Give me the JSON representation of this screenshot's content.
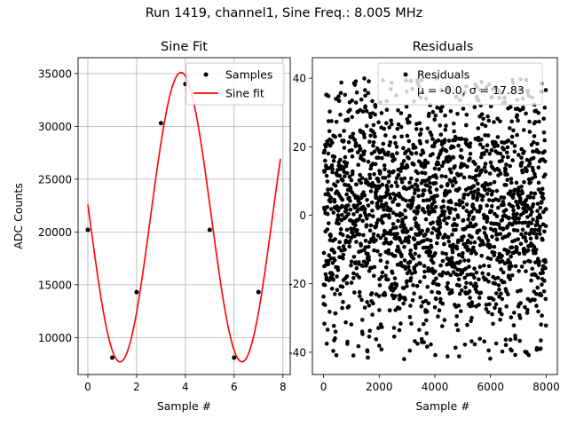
{
  "figure": {
    "suptitle": "Run 1419, channel1, Sine Freq.: 8.005 MHz"
  },
  "chart_data": [
    {
      "type": "line",
      "title": "Sine Fit",
      "xlabel": "Sample #",
      "ylabel": "ADC Counts",
      "xlim": [
        -0.4,
        8.3
      ],
      "ylim": [
        6500,
        36500
      ],
      "xticks": [
        0,
        2,
        4,
        6,
        8
      ],
      "yticks": [
        10000,
        15000,
        20000,
        25000,
        30000,
        35000
      ],
      "grid": true,
      "legend": "top-right",
      "fit_params": {
        "amplitude": 13700,
        "offset": 21400,
        "period_samples": 5.0,
        "phase_samples": 0.0
      },
      "fit_x_range": [
        0,
        7.9
      ],
      "series": [
        {
          "name": "Samples",
          "kind": "scatter",
          "color": "#000000",
          "x": [
            0,
            1,
            2,
            3,
            4,
            5,
            6,
            7
          ],
          "y": [
            20200,
            8100,
            14300,
            30300,
            34000,
            20200,
            8100,
            14300
          ]
        },
        {
          "name": "Sine fit",
          "kind": "line",
          "color": "#ff0000"
        }
      ]
    },
    {
      "type": "scatter",
      "title": "Residuals",
      "xlabel": "Sample #",
      "ylabel": "",
      "xlim": [
        -400,
        8400
      ],
      "ylim": [
        -46.5,
        46
      ],
      "xticks": [
        0,
        2000,
        4000,
        6000,
        8000
      ],
      "yticks": [
        -40,
        -20,
        0,
        20,
        40
      ],
      "grid": false,
      "legend": "top-right",
      "n_points": 8000,
      "mean": -0.0,
      "sigma": 17.83,
      "residual_range": [
        -42,
        40
      ],
      "series": [
        {
          "name": "Residuals",
          "color": "#000000"
        }
      ],
      "legend_stats": "μ = -0.0, σ = 17.83"
    }
  ]
}
